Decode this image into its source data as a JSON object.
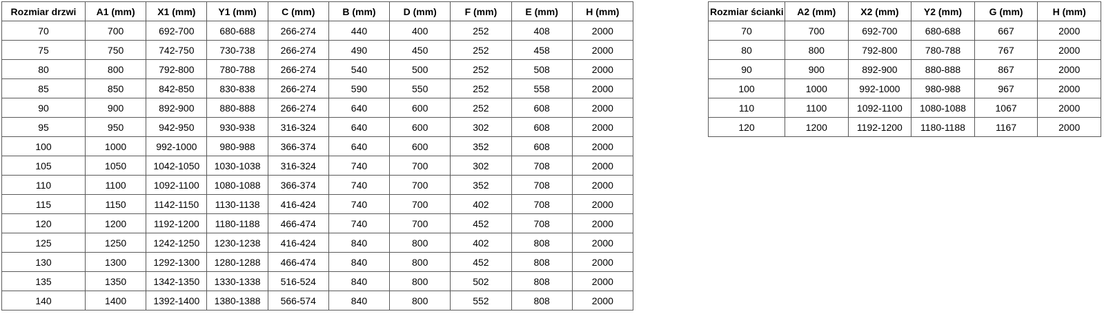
{
  "doors_table": {
    "title": "Rozmiar drzwi",
    "headers": [
      "Rozmiar drzwi",
      "A1 (mm)",
      "X1 (mm)",
      "Y1 (mm)",
      "C (mm)",
      "B (mm)",
      "D (mm)",
      "F (mm)",
      "E (mm)",
      "H (mm)"
    ],
    "rows": [
      [
        "70",
        "700",
        "692-700",
        "680-688",
        "266-274",
        "440",
        "400",
        "252",
        "408",
        "2000"
      ],
      [
        "75",
        "750",
        "742-750",
        "730-738",
        "266-274",
        "490",
        "450",
        "252",
        "458",
        "2000"
      ],
      [
        "80",
        "800",
        "792-800",
        "780-788",
        "266-274",
        "540",
        "500",
        "252",
        "508",
        "2000"
      ],
      [
        "85",
        "850",
        "842-850",
        "830-838",
        "266-274",
        "590",
        "550",
        "252",
        "558",
        "2000"
      ],
      [
        "90",
        "900",
        "892-900",
        "880-888",
        "266-274",
        "640",
        "600",
        "252",
        "608",
        "2000"
      ],
      [
        "95",
        "950",
        "942-950",
        "930-938",
        "316-324",
        "640",
        "600",
        "302",
        "608",
        "2000"
      ],
      [
        "100",
        "1000",
        "992-1000",
        "980-988",
        "366-374",
        "640",
        "600",
        "352",
        "608",
        "2000"
      ],
      [
        "105",
        "1050",
        "1042-1050",
        "1030-1038",
        "316-324",
        "740",
        "700",
        "302",
        "708",
        "2000"
      ],
      [
        "110",
        "1100",
        "1092-1100",
        "1080-1088",
        "366-374",
        "740",
        "700",
        "352",
        "708",
        "2000"
      ],
      [
        "115",
        "1150",
        "1142-1150",
        "1130-1138",
        "416-424",
        "740",
        "700",
        "402",
        "708",
        "2000"
      ],
      [
        "120",
        "1200",
        "1192-1200",
        "1180-1188",
        "466-474",
        "740",
        "700",
        "452",
        "708",
        "2000"
      ],
      [
        "125",
        "1250",
        "1242-1250",
        "1230-1238",
        "416-424",
        "840",
        "800",
        "402",
        "808",
        "2000"
      ],
      [
        "130",
        "1300",
        "1292-1300",
        "1280-1288",
        "466-474",
        "840",
        "800",
        "452",
        "808",
        "2000"
      ],
      [
        "135",
        "1350",
        "1342-1350",
        "1330-1338",
        "516-524",
        "840",
        "800",
        "502",
        "808",
        "2000"
      ],
      [
        "140",
        "1400",
        "1392-1400",
        "1380-1388",
        "566-574",
        "840",
        "800",
        "552",
        "808",
        "2000"
      ]
    ]
  },
  "wall_table": {
    "title": "Rozmiar ścianki",
    "headers": [
      "Rozmiar ścianki",
      "A2 (mm)",
      "X2 (mm)",
      "Y2 (mm)",
      "G (mm)",
      "H (mm)"
    ],
    "rows": [
      [
        "70",
        "700",
        "692-700",
        "680-688",
        "667",
        "2000"
      ],
      [
        "80",
        "800",
        "792-800",
        "780-788",
        "767",
        "2000"
      ],
      [
        "90",
        "900",
        "892-900",
        "880-888",
        "867",
        "2000"
      ],
      [
        "100",
        "1000",
        "992-1000",
        "980-988",
        "967",
        "2000"
      ],
      [
        "110",
        "1100",
        "1092-1100",
        "1080-1088",
        "1067",
        "2000"
      ],
      [
        "120",
        "1200",
        "1192-1200",
        "1180-1188",
        "1167",
        "2000"
      ]
    ]
  },
  "colors": {
    "border": "#595959",
    "text": "#000000",
    "background": "#ffffff"
  }
}
